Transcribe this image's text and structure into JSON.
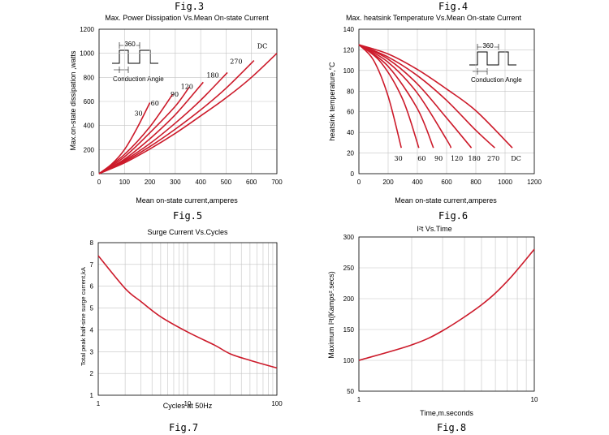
{
  "figure_labels": [
    "Fig.3",
    "Fig.4",
    "Fig.5",
    "Fig.6",
    "Fig.7",
    "Fig.8"
  ],
  "chart_data": [
    {
      "type": "line",
      "title": "Max. Power Dissipation Vs.Mean On-state Current",
      "xlabel": "Mean on-state current,amperes",
      "ylabel": "Max.on-state dissipation ,watts",
      "xlim": [
        0,
        700
      ],
      "ylim": [
        0,
        1200
      ],
      "xticks": [
        0,
        100,
        200,
        300,
        400,
        500,
        600,
        700
      ],
      "yticks": [
        0,
        200,
        400,
        600,
        800,
        1000,
        1200
      ],
      "grid": true,
      "inset": {
        "angle_label": "360",
        "text": "Conduction Angle"
      },
      "series": [
        {
          "name": "30",
          "x": [
            0,
            50,
            100,
            150,
            200
          ],
          "y": [
            0,
            80,
            200,
            380,
            590
          ]
        },
        {
          "name": "60",
          "x": [
            0,
            100,
            200,
            290
          ],
          "y": [
            0,
            160,
            390,
            660
          ]
        },
        {
          "name": "90",
          "x": [
            0,
            100,
            200,
            300,
            355
          ],
          "y": [
            0,
            140,
            340,
            560,
            720
          ]
        },
        {
          "name": "120",
          "x": [
            0,
            100,
            200,
            300,
            410
          ],
          "y": [
            0,
            120,
            290,
            490,
            760
          ]
        },
        {
          "name": "180",
          "x": [
            0,
            100,
            200,
            300,
            400,
            505
          ],
          "y": [
            0,
            110,
            250,
            420,
            610,
            840
          ]
        },
        {
          "name": "270",
          "x": [
            0,
            100,
            200,
            300,
            400,
            500,
            610
          ],
          "y": [
            0,
            100,
            225,
            370,
            530,
            710,
            940
          ]
        },
        {
          "name": "DC",
          "x": [
            0,
            100,
            200,
            300,
            400,
            500,
            600,
            700
          ],
          "y": [
            0,
            90,
            205,
            335,
            480,
            630,
            800,
            1000
          ]
        }
      ]
    },
    {
      "type": "line",
      "title": "Max. heatsink Temperature Vs.Mean On-state Current",
      "xlabel": "Mean on-state current,amperes",
      "ylabel": "heatsink temperature,°C",
      "xlim": [
        0,
        1200
      ],
      "ylim": [
        0,
        140
      ],
      "xticks": [
        0,
        200,
        400,
        600,
        800,
        1000,
        1200
      ],
      "yticks": [
        0,
        20,
        40,
        60,
        80,
        100,
        120,
        140
      ],
      "grid": true,
      "inset": {
        "angle_label": "360",
        "text": "Conduction Angle"
      },
      "series": [
        {
          "name": "30",
          "x": [
            0,
            100,
            200,
            290
          ],
          "y": [
            125,
            110,
            75,
            25
          ]
        },
        {
          "name": "60",
          "x": [
            0,
            150,
            300,
            410
          ],
          "y": [
            125,
            108,
            72,
            25
          ]
        },
        {
          "name": "90",
          "x": [
            0,
            200,
            400,
            510
          ],
          "y": [
            125,
            104,
            63,
            25
          ]
        },
        {
          "name": "120",
          "x": [
            0,
            200,
            400,
            600,
            630
          ],
          "y": [
            125,
            108,
            78,
            33,
            25
          ]
        },
        {
          "name": "180",
          "x": [
            0,
            200,
            400,
            600,
            770
          ],
          "y": [
            125,
            111,
            87,
            54,
            25
          ]
        },
        {
          "name": "270",
          "x": [
            0,
            200,
            400,
            600,
            800,
            930
          ],
          "y": [
            125,
            113,
            95,
            71,
            42,
            25
          ]
        },
        {
          "name": "DC",
          "x": [
            0,
            200,
            400,
            600,
            800,
            1050
          ],
          "y": [
            125,
            116,
            101,
            82,
            61,
            25
          ]
        }
      ],
      "curve_labels": [
        {
          "text": "30",
          "x": 270
        },
        {
          "text": "60",
          "x": 430
        },
        {
          "text": "90",
          "x": 545
        },
        {
          "text": "120",
          "x": 670
        },
        {
          "text": "180",
          "x": 790
        },
        {
          "text": "270",
          "x": 920
        },
        {
          "text": "DC",
          "x": 1075
        }
      ]
    },
    {
      "type": "line",
      "title": "Surge Current Vs.Cycles",
      "xlabel": "Cycles at 50Hz",
      "ylabel": "Total peak half-sine surge current,kA",
      "xscale": "log",
      "xlim": [
        1,
        100
      ],
      "ylim": [
        1,
        8
      ],
      "xticks": [
        1,
        10,
        100
      ],
      "yticks": [
        1,
        2,
        3,
        4,
        5,
        6,
        7,
        8
      ],
      "grid": true,
      "series": [
        {
          "name": "",
          "x": [
            1,
            2,
            3,
            5,
            10,
            20,
            30,
            50,
            100
          ],
          "y": [
            7.4,
            5.9,
            5.3,
            4.6,
            3.9,
            3.3,
            2.9,
            2.6,
            2.25
          ]
        }
      ]
    },
    {
      "type": "line",
      "title": "I²t Vs.Time",
      "xlabel": "Time,m.seconds",
      "ylabel": "Maximum I²t(Kamps².secs)",
      "xscale": "log",
      "xlim": [
        1,
        10
      ],
      "ylim": [
        50,
        300
      ],
      "xticks": [
        1,
        10
      ],
      "yticks": [
        50,
        100,
        150,
        200,
        250,
        300
      ],
      "grid": true,
      "series": [
        {
          "name": "",
          "x": [
            1,
            2,
            3,
            5,
            7,
            10
          ],
          "y": [
            100,
            125,
            148,
            190,
            228,
            280
          ]
        }
      ]
    }
  ]
}
